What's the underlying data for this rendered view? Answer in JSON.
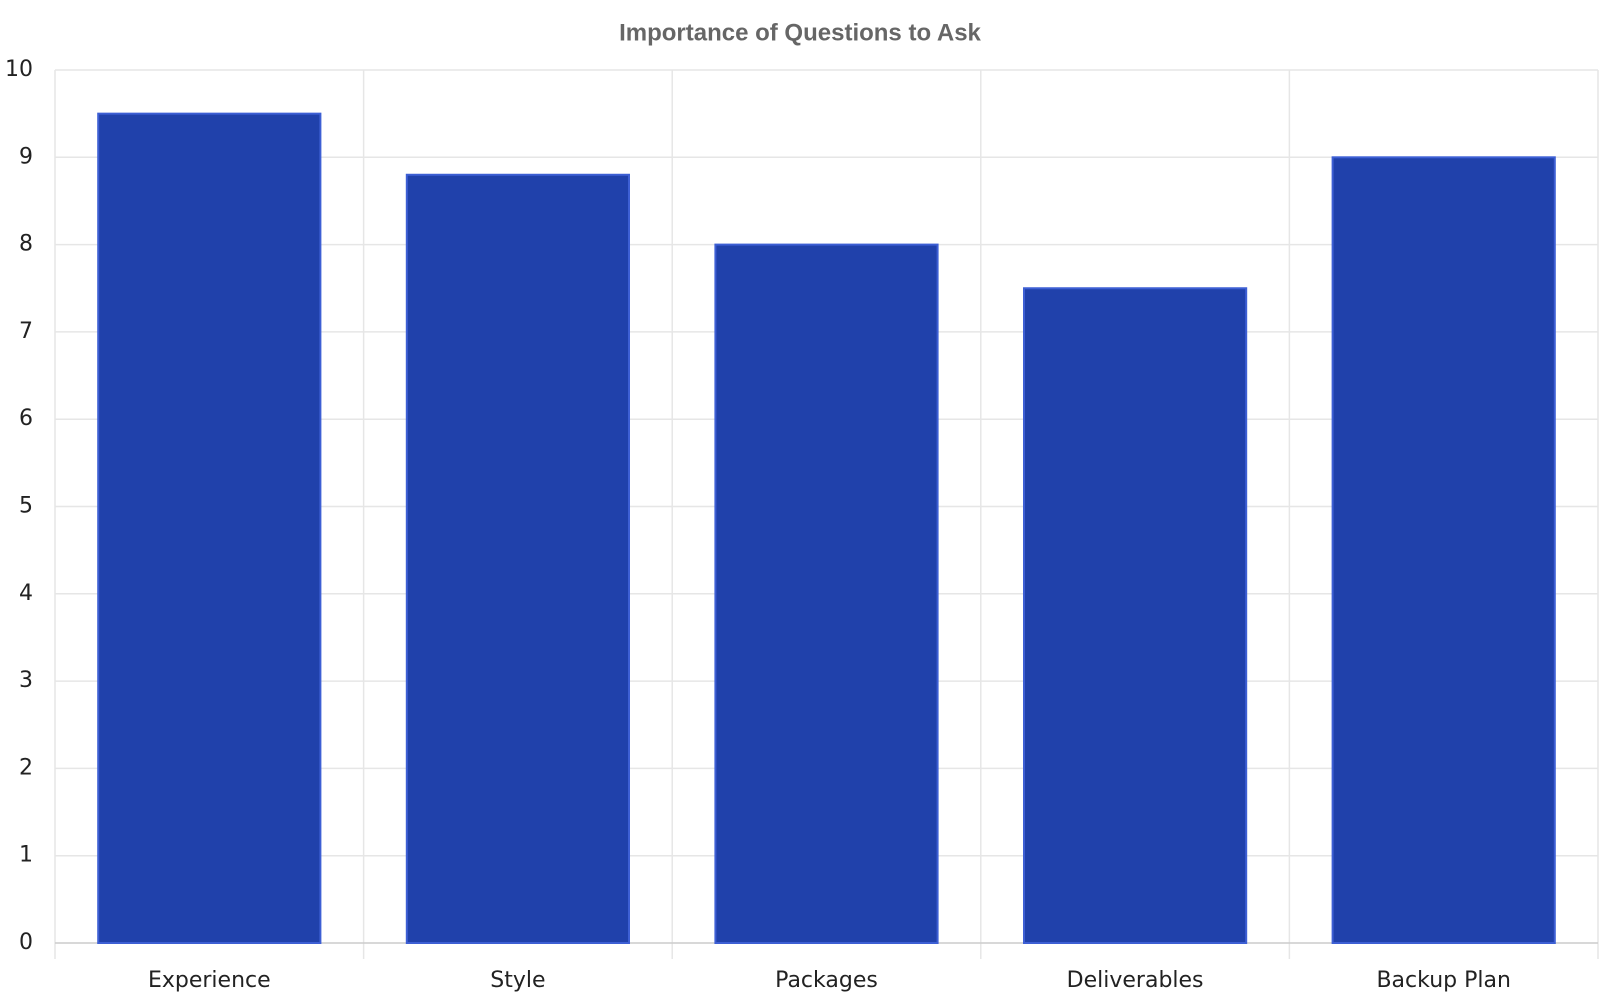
{
  "chart_data": {
    "type": "bar",
    "title": "Importance of Questions to Ask",
    "categories": [
      "Experience",
      "Style",
      "Packages",
      "Deliverables",
      "Backup Plan"
    ],
    "values": [
      9.5,
      8.8,
      8,
      7.5,
      9
    ],
    "color": "#2041ab",
    "ylim": [
      0,
      10
    ],
    "yticks": [
      0,
      1,
      2,
      3,
      4,
      5,
      6,
      7,
      8,
      9,
      10
    ],
    "grid": true
  }
}
